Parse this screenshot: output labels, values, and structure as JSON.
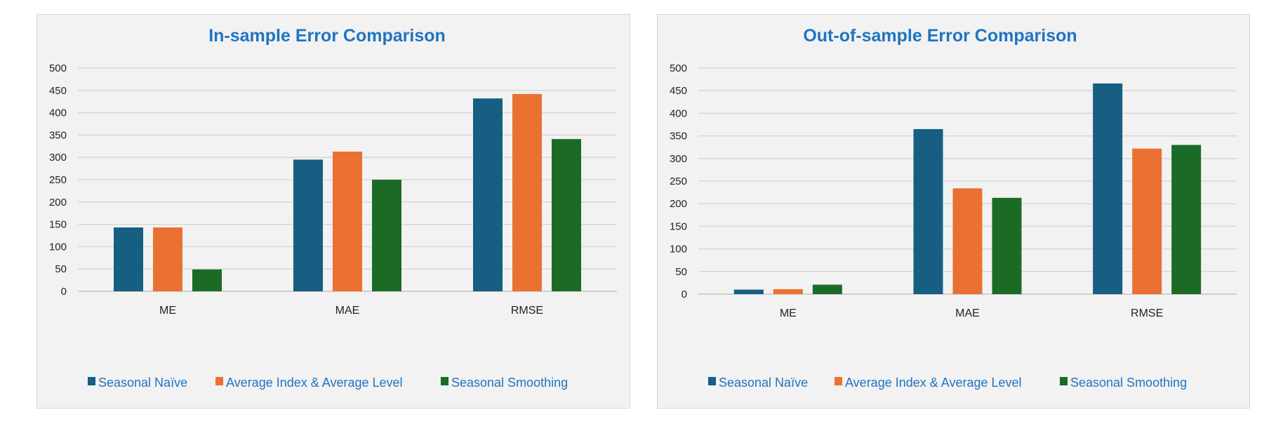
{
  "colors": {
    "seasonal_naive": "#165e82",
    "average_index": "#ea7132",
    "seasonal_smoothing": "#1b6b26",
    "title": "#1f74c1",
    "gridline": "#d4d4d4"
  },
  "chart_data": [
    {
      "type": "bar",
      "title": "In-sample Error Comparison",
      "categories": [
        "ME",
        "MAE",
        "RMSE"
      ],
      "ylim": [
        0,
        500
      ],
      "yticks": [
        0,
        50,
        100,
        150,
        200,
        250,
        300,
        350,
        400,
        450,
        500
      ],
      "grid": true,
      "legend": "bottom",
      "series": [
        {
          "name": "Seasonal Naïve",
          "values": [
            143,
            295,
            432
          ]
        },
        {
          "name": "Average Index & Average Level",
          "values": [
            143,
            313,
            442
          ]
        },
        {
          "name": "Seasonal Smoothing",
          "values": [
            49,
            250,
            341
          ]
        }
      ]
    },
    {
      "type": "bar",
      "title": "Out-of-sample Error Comparison",
      "categories": [
        "ME",
        "MAE",
        "RMSE"
      ],
      "ylim": [
        0,
        500
      ],
      "yticks": [
        0,
        50,
        100,
        150,
        200,
        250,
        300,
        350,
        400,
        450,
        500
      ],
      "grid": true,
      "legend": "bottom",
      "series": [
        {
          "name": "Seasonal Naïve",
          "values": [
            10,
            365,
            466
          ]
        },
        {
          "name": "Average Index & Average Level",
          "values": [
            11,
            234,
            322
          ]
        },
        {
          "name": "Seasonal Smoothing",
          "values": [
            21,
            213,
            330
          ]
        }
      ]
    }
  ]
}
